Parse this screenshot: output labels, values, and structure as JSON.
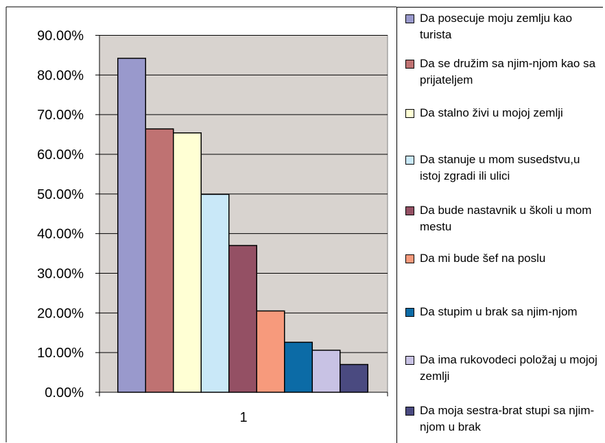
{
  "chart_data": {
    "type": "bar",
    "categories": [
      "1"
    ],
    "ylim": [
      0,
      90
    ],
    "ytick_step": 10,
    "ytick_labels": [
      "0.00%",
      "10.00%",
      "20.00%",
      "30.00%",
      "40.00%",
      "50.00%",
      "60.00%",
      "70.00%",
      "80.00%",
      "90.00%"
    ],
    "grid": true,
    "legend_position": "right",
    "plot_background": "#d8d3cf",
    "series": [
      {
        "name": "Da posecuje moju zemlju kao turista",
        "values": [
          84.2
        ],
        "color": "#9999cc"
      },
      {
        "name": "Da se družim sa njim-njom kao sa prijateljem",
        "values": [
          66.4
        ],
        "color": "#bf7272"
      },
      {
        "name": "Da stalno živi u mojoj zemlji",
        "values": [
          65.4
        ],
        "color": "#ffffd4"
      },
      {
        "name": "Da stanuje u mom susedstvu,u istoj zgradi ili ulici",
        "values": [
          49.9
        ],
        "color": "#c9e8f8"
      },
      {
        "name": "Da bude nastavnik u školi u mom mestu",
        "values": [
          37.0
        ],
        "color": "#945064"
      },
      {
        "name": "Da mi bude šef na poslu",
        "values": [
          20.5
        ],
        "color": "#f79a7c"
      },
      {
        "name": "Da stupim u brak sa njim-njom",
        "values": [
          12.6
        ],
        "color": "#0c6ba6"
      },
      {
        "name": "Da ima rukovodeci položaj u mojoj zemlji",
        "values": [
          10.6
        ],
        "color": "#c8c2e4"
      },
      {
        "name": "Da moja sestra-brat stupi sa njim-njom u brak",
        "values": [
          7.0
        ],
        "color": "#4a4a80"
      }
    ]
  }
}
